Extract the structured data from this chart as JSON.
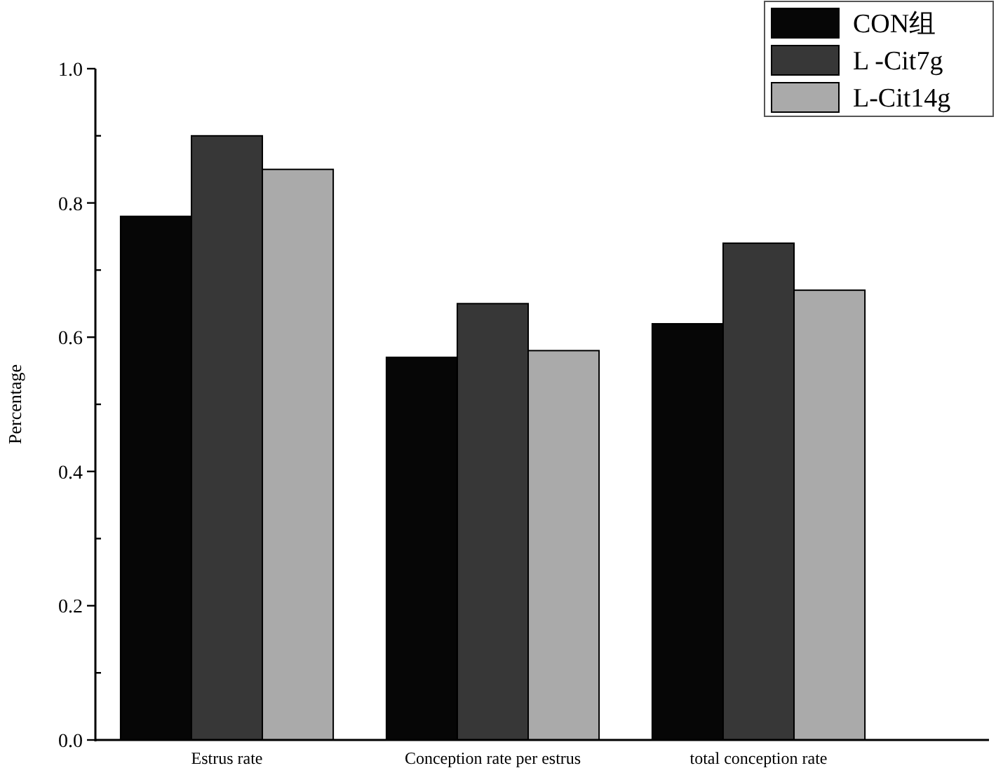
{
  "chart_data": {
    "type": "bar",
    "ylabel": "Percentage",
    "categories": [
      "Estrus rate",
      "Conception rate per estrus",
      "total conception rate"
    ],
    "series": [
      {
        "name": "CON组",
        "color": "#060606",
        "values": [
          0.78,
          0.57,
          0.62
        ]
      },
      {
        "name": "L -Cit7g",
        "color": "#373737",
        "values": [
          0.9,
          0.65,
          0.74
        ]
      },
      {
        "name": "L-Cit14g",
        "color": "#aaaaaa",
        "values": [
          0.85,
          0.58,
          0.67
        ]
      }
    ],
    "ylim": [
      0,
      1.0
    ],
    "yticks": [
      {
        "value": 0,
        "label": "0.0"
      },
      {
        "value": 0.1,
        "label": null
      },
      0.2,
      {
        "value": 0.3,
        "label": null
      },
      0.4,
      {
        "value": 0.5,
        "label": null
      },
      0.6,
      {
        "value": 0.7,
        "label": null
      },
      0.8,
      {
        "value": 0.9,
        "label": null
      },
      {
        "value": 1.0,
        "label": "1.0"
      }
    ],
    "legend": "top right",
    "grid": false
  }
}
